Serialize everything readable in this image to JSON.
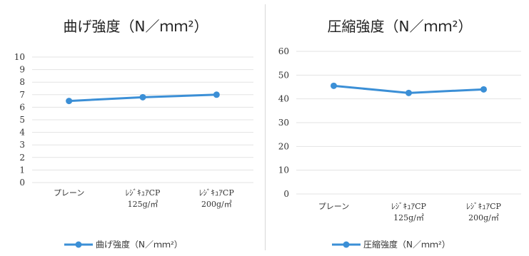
{
  "chart_data": [
    {
      "type": "line",
      "title": "曲げ強度（N／ｍｍ²）",
      "categories": [
        [
          "プレーン"
        ],
        [
          "ﾚｼﾞｷｭｱCP",
          "125g/㎡"
        ],
        [
          "ﾚｼﾞｷｭｱCP",
          "200g/㎡"
        ]
      ],
      "series": [
        {
          "name": "曲げ強度（N／ｍｍ²）",
          "values": [
            6.5,
            6.8,
            7.0
          ],
          "color": "#3b8fd6"
        }
      ],
      "ylim": [
        0,
        10
      ],
      "yticks": [
        0,
        1,
        2,
        3,
        4,
        5,
        6,
        7,
        8,
        9,
        10
      ],
      "grid": true,
      "legend": "bottom"
    },
    {
      "type": "line",
      "title": "圧縮強度（N／ｍｍ²）",
      "categories": [
        [
          "プレーン"
        ],
        [
          "ﾚｼﾞｷｭｱCP",
          "125g/㎡"
        ],
        [
          "ﾚｼﾞｷｭｱCP",
          "200g/㎡"
        ]
      ],
      "series": [
        {
          "name": "圧縮強度（N／ｍｍ²）",
          "values": [
            45.5,
            42.5,
            44.0
          ],
          "color": "#3b8fd6"
        }
      ],
      "ylim": [
        0,
        60
      ],
      "yticks": [
        0,
        10,
        20,
        30,
        40,
        50,
        60
      ],
      "grid": true,
      "legend": "bottom"
    }
  ]
}
